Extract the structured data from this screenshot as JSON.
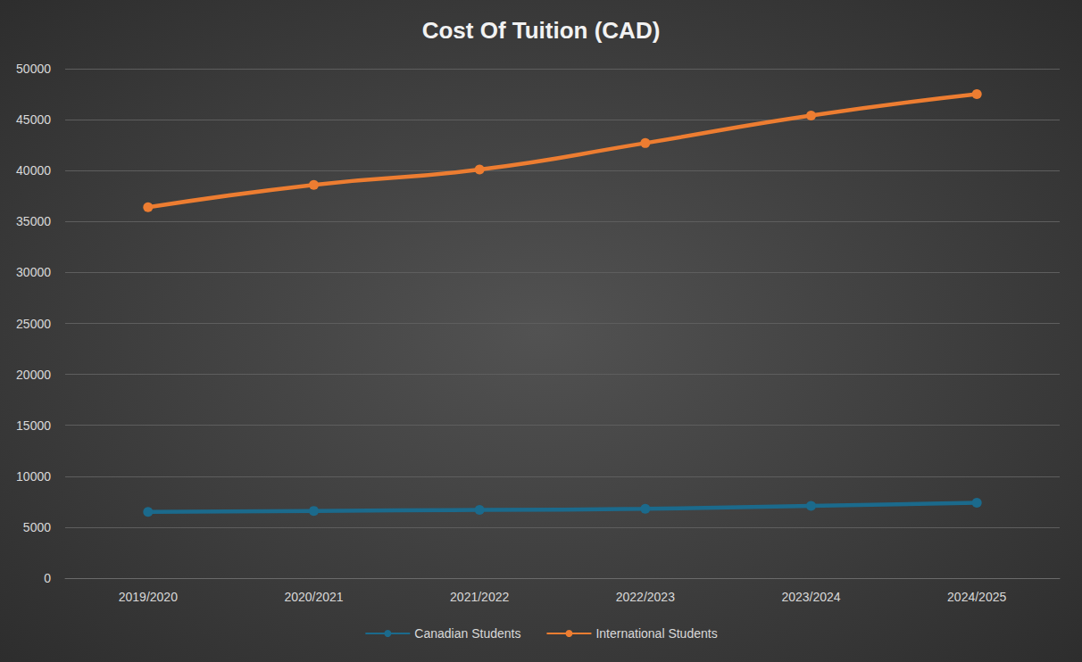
{
  "chart_data": {
    "type": "line",
    "title": "Cost Of Tuition (CAD)",
    "categories": [
      "2019/2020",
      "2020/2021",
      "2021/2022",
      "2022/2023",
      "2023/2024",
      "2024/2025"
    ],
    "series": [
      {
        "name": "Canadian Students",
        "color": "#1b6a8c",
        "values": [
          6500,
          6600,
          6700,
          6800,
          7100,
          7400
        ]
      },
      {
        "name": "International Students",
        "color": "#ed7d31",
        "values": [
          36400,
          38600,
          40100,
          42700,
          45400,
          47500
        ]
      }
    ],
    "ylim": [
      0,
      50000
    ],
    "yticks": [
      0,
      5000,
      10000,
      15000,
      20000,
      25000,
      30000,
      35000,
      40000,
      45000,
      50000
    ],
    "grid": true,
    "legend": "bottom",
    "marker": "circle"
  }
}
